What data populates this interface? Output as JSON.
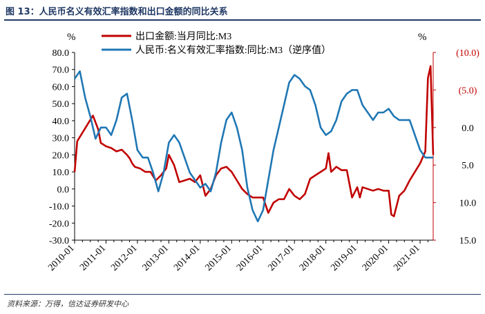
{
  "header": {
    "title": "图 13：人民币名义有效汇率指数和出口金额的同比关系"
  },
  "footer": {
    "source": "资料来源：万得，信达证券研发中心"
  },
  "colors": {
    "export": "#c00000",
    "rmb": "#1f77b4",
    "title": "#1f3864",
    "right_axis": "#c00000"
  },
  "chart_data": {
    "type": "line",
    "left_axis": {
      "unit_label": "%",
      "ylim": [
        -30,
        80
      ],
      "ticks": [
        80,
        70,
        60,
        50,
        40,
        30,
        20,
        10,
        0,
        -10,
        -20,
        -30
      ],
      "tick_labels": [
        "80.0",
        "70.0",
        "60.0",
        "50.0",
        "40.0",
        "30.0",
        "20.0",
        "10.0",
        "0.0",
        "-10.0",
        "-20.0",
        "-30.0"
      ]
    },
    "right_axis": {
      "unit_label": "%",
      "inverted": true,
      "ylim": [
        -10,
        15
      ],
      "ticks": [
        -10,
        -5,
        0,
        5,
        10,
        15
      ],
      "tick_labels": [
        "(10.0)",
        "(5.0)",
        "0.0",
        "5.0",
        "10.0",
        "15.0"
      ]
    },
    "x_axis": {
      "start": "2010-01",
      "end": "2021-06",
      "tick_labels": [
        "2010-01",
        "2011-01",
        "2012-01",
        "2013-01",
        "2014-01",
        "2015-01",
        "2016-01",
        "2017-01",
        "2018-01",
        "2019-01",
        "2020-01",
        "2021-01"
      ]
    },
    "legend": {
      "placement": "top-center"
    },
    "series": [
      {
        "name": "出口金额:当月同比:M3",
        "axis": "left",
        "x": [
          "2010-01",
          "2010-02",
          "2010-04",
          "2010-06",
          "2010-08",
          "2010-10",
          "2010-11",
          "2010-12",
          "2011-01",
          "2011-03",
          "2011-05",
          "2011-07",
          "2011-09",
          "2011-10",
          "2011-11",
          "2011-12",
          "2012-02",
          "2012-04",
          "2012-06",
          "2012-08",
          "2012-10",
          "2012-12",
          "2013-01",
          "2013-03",
          "2013-05",
          "2013-07",
          "2013-09",
          "2013-11",
          "2014-01",
          "2014-03",
          "2014-05",
          "2014-07",
          "2014-09",
          "2014-11",
          "2015-01",
          "2015-03",
          "2015-05",
          "2015-07",
          "2015-09",
          "2015-11",
          "2016-01",
          "2016-03",
          "2016-05",
          "2016-07",
          "2016-09",
          "2016-11",
          "2017-01",
          "2017-03",
          "2017-05",
          "2017-07",
          "2017-09",
          "2017-11",
          "2018-01",
          "2018-02",
          "2018-03",
          "2018-05",
          "2018-07",
          "2018-09",
          "2018-11",
          "2019-01",
          "2019-02",
          "2019-03",
          "2019-05",
          "2019-07",
          "2019-09",
          "2019-11",
          "2020-01",
          "2020-02",
          "2020-03",
          "2020-05",
          "2020-07",
          "2020-09",
          "2020-11",
          "2021-01",
          "2021-03",
          "2021-04",
          "2021-05",
          "2021-06"
        ],
        "values": [
          10,
          28,
          33,
          38,
          43,
          35,
          27,
          26,
          25,
          24,
          22,
          23,
          20,
          18,
          15,
          13,
          12,
          10,
          10,
          5,
          8,
          12,
          20,
          14,
          4,
          5,
          6,
          4,
          8,
          -4,
          0,
          8,
          12,
          13,
          10,
          5,
          0,
          -3,
          -5,
          -5,
          -5,
          -14,
          -8,
          -6,
          -6,
          0,
          -4,
          -6,
          -3,
          6,
          8,
          10,
          12,
          21,
          10,
          13,
          11,
          11,
          -5,
          1,
          -5,
          1,
          0,
          -1,
          0,
          -1,
          -1,
          -15,
          -16,
          -4,
          -1,
          5,
          10,
          15,
          22,
          65,
          72,
          20
        ],
        "color": "#c00000"
      },
      {
        "name": "人民币:名义有效汇率指数:同比:M3（逆序值）",
        "axis": "right",
        "x": [
          "2010-01",
          "2010-03",
          "2010-05",
          "2010-07",
          "2010-09",
          "2010-11",
          "2011-01",
          "2011-03",
          "2011-05",
          "2011-07",
          "2011-09",
          "2011-11",
          "2012-01",
          "2012-03",
          "2012-05",
          "2012-07",
          "2012-09",
          "2012-11",
          "2013-01",
          "2013-03",
          "2013-05",
          "2013-07",
          "2013-09",
          "2013-11",
          "2014-01",
          "2014-03",
          "2014-05",
          "2014-07",
          "2014-09",
          "2014-11",
          "2015-01",
          "2015-03",
          "2015-05",
          "2015-07",
          "2015-09",
          "2015-11",
          "2016-01",
          "2016-03",
          "2016-05",
          "2016-07",
          "2016-09",
          "2016-11",
          "2017-01",
          "2017-03",
          "2017-05",
          "2017-07",
          "2017-09",
          "2017-11",
          "2018-01",
          "2018-03",
          "2018-05",
          "2018-07",
          "2018-09",
          "2018-11",
          "2019-01",
          "2019-03",
          "2019-05",
          "2019-07",
          "2019-09",
          "2019-11",
          "2020-01",
          "2020-03",
          "2020-05",
          "2020-07",
          "2020-09",
          "2020-11",
          "2021-01",
          "2021-03",
          "2021-05",
          "2021-06"
        ],
        "values": [
          -6.5,
          -7.5,
          -4,
          -1.5,
          1.5,
          0,
          0,
          1,
          -1,
          -4,
          -4.5,
          -1,
          3,
          4,
          4,
          6,
          8.5,
          6,
          2,
          1,
          2,
          4,
          6,
          7,
          8,
          7.5,
          8.5,
          6,
          2,
          -1,
          -2,
          0,
          3,
          8,
          11,
          12.5,
          11,
          7,
          3,
          0,
          -3,
          -6,
          -7,
          -6.5,
          -5.5,
          -5,
          -3,
          0,
          1,
          0.5,
          -1,
          -3.5,
          -4.5,
          -5,
          -5,
          -3,
          -2,
          -1,
          -2,
          -2,
          -2.5,
          -1.5,
          -1,
          -1,
          -1,
          1,
          3,
          4,
          4,
          4
        ],
        "color": "#1f77b4"
      }
    ]
  }
}
